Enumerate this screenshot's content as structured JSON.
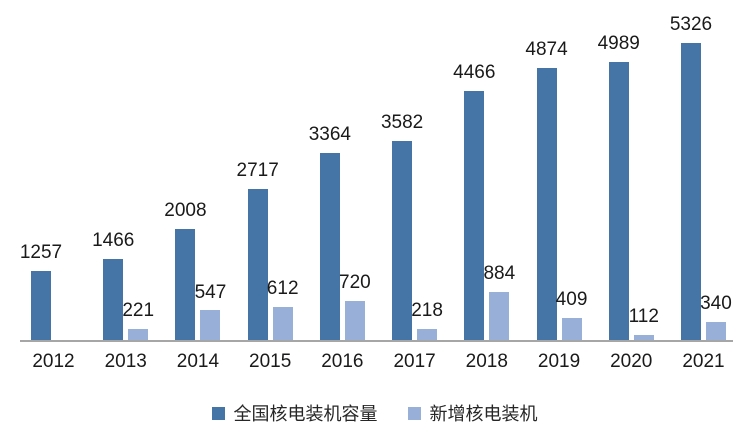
{
  "chart_data": {
    "type": "bar",
    "title": "",
    "xlabel": "",
    "ylabel": "",
    "categories": [
      "2012",
      "2013",
      "2014",
      "2015",
      "2016",
      "2017",
      "2018",
      "2019",
      "2020",
      "2021"
    ],
    "series": [
      {
        "name": "全国核电装机容量",
        "color": "#4575a7",
        "values": [
          1257,
          1466,
          2008,
          2717,
          3364,
          3582,
          4466,
          4874,
          4989,
          5326
        ]
      },
      {
        "name": "新增核电装机",
        "color": "#98b0d7",
        "values": [
          null,
          221,
          547,
          612,
          720,
          218,
          884,
          409,
          112,
          340
        ]
      }
    ],
    "ylim": [
      0,
      5326
    ],
    "grid": false,
    "y_axis_visible": false,
    "data_labels": true,
    "legend_position": "bottom",
    "axis_line_color": "#a6a6a6",
    "label_color": "#1a1a1a"
  }
}
